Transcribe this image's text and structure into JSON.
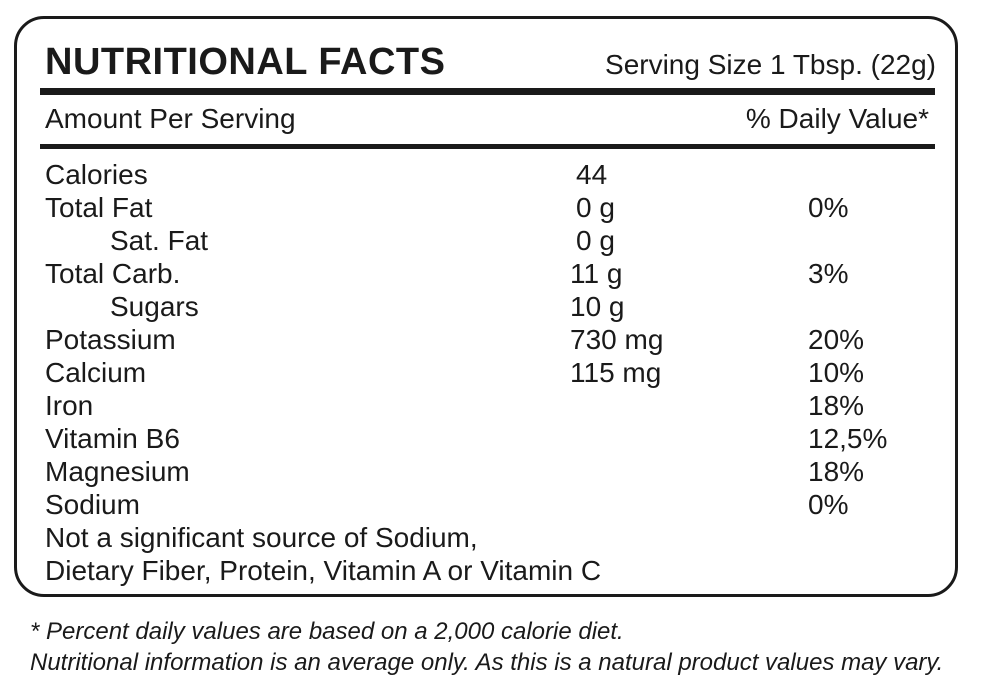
{
  "header": {
    "title": "NUTRITIONAL FACTS",
    "serving_size": "Serving Size 1 Tbsp. (22g)"
  },
  "subheader": {
    "amount_label": "Amount Per Serving",
    "daily_value_label": "% Daily Value*"
  },
  "rows": [
    {
      "name": "Calories",
      "amount": "44",
      "dv": ""
    },
    {
      "name": "Total Fat",
      "amount": "0 g",
      "dv": "0%"
    },
    {
      "name": "Sat. Fat",
      "amount": "0 g",
      "dv": ""
    },
    {
      "name": "Total Carb.",
      "amount": "11 g",
      "dv": "3%"
    },
    {
      "name": "Sugars",
      "amount": "10 g",
      "dv": ""
    },
    {
      "name": "Potassium",
      "amount": "730 mg",
      "dv": "20%"
    },
    {
      "name": "Calcium",
      "amount": "115 mg",
      "dv": "10%"
    },
    {
      "name": "Iron",
      "amount": "",
      "dv": "18%"
    },
    {
      "name": "Vitamin B6",
      "amount": "",
      "dv": "12,5%"
    },
    {
      "name": "Magnesium",
      "amount": "",
      "dv": "18%"
    },
    {
      "name": "Sodium",
      "amount": "",
      "dv": "0%"
    }
  ],
  "note": {
    "line1": "Not a significant source of Sodium,",
    "line2": "Dietary Fiber, Protein, Vitamin A or Vitamin C"
  },
  "footnote": {
    "line1": "* Percent daily values are based on a 2,000 calorie diet.",
    "line2": "Nutritional information is an average only. As this is a natural product values may vary."
  }
}
